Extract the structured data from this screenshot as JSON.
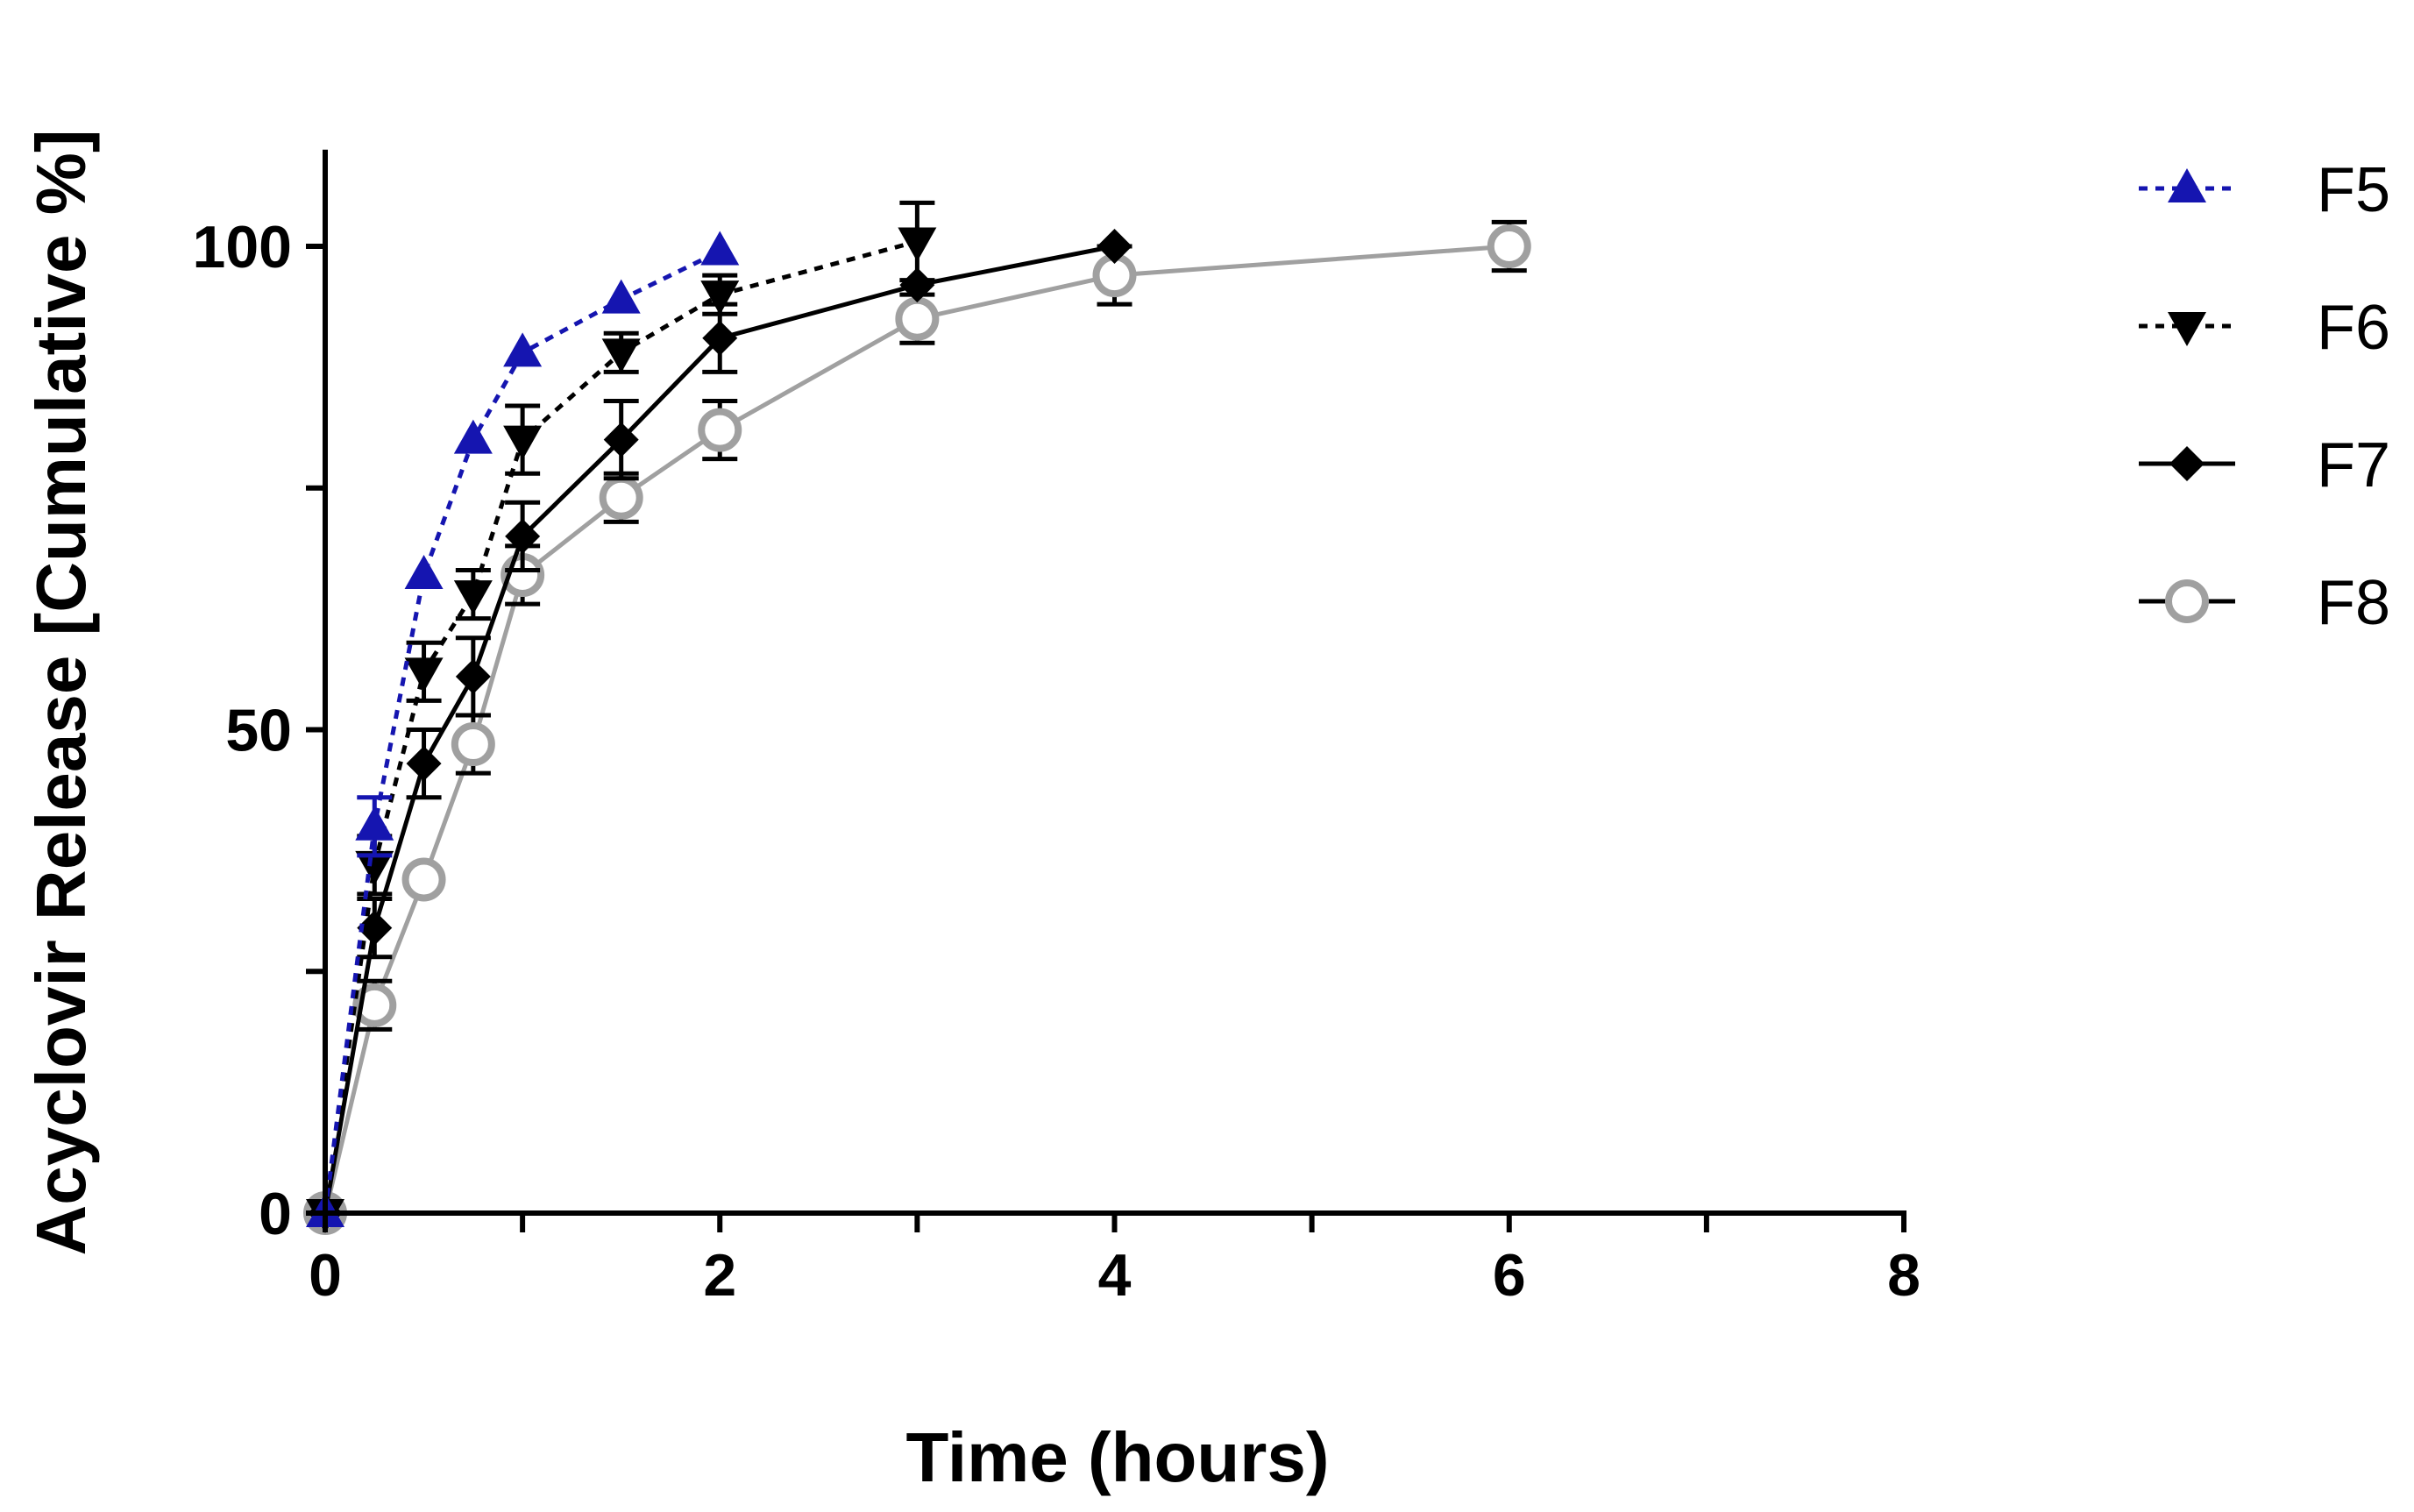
{
  "chart_data": {
    "type": "line",
    "title": "",
    "xlabel": "Time (hours)",
    "ylabel": "Acyclovir Release [Cumulative %]",
    "xlim": [
      0,
      8
    ],
    "ylim": [
      0,
      110
    ],
    "xticks": [
      0,
      2,
      4,
      6,
      8
    ],
    "xticks_minor": [
      1,
      3,
      5,
      7
    ],
    "yticks": [
      0,
      50,
      100
    ],
    "yticks_minor": [
      25,
      75
    ],
    "x_tick_labels": [
      "0",
      "2",
      "4",
      "6",
      "8"
    ],
    "y_tick_labels": [
      "0",
      "50",
      "100"
    ],
    "grid": false,
    "legend_position": "top-right, outside plot",
    "series": [
      {
        "name": "F5",
        "marker": "triangle-up",
        "line_style": "dashed",
        "color": "#1515b0",
        "x": [
          0,
          0.25,
          0.5,
          0.75,
          1,
          1.5,
          2
        ],
        "y": [
          0,
          40,
          66,
          80,
          89,
          94.5,
          99.5
        ],
        "err": [
          0,
          3,
          0,
          0,
          0,
          0,
          0
        ]
      },
      {
        "name": "F6",
        "marker": "triangle-down",
        "line_style": "dashed",
        "color": "#000000",
        "x": [
          0,
          0.25,
          0.5,
          0.75,
          1,
          1.5,
          2,
          3
        ],
        "y": [
          0,
          36,
          56,
          64,
          80,
          89,
          95,
          100.5
        ],
        "err": [
          0,
          3,
          3,
          2.5,
          3.5,
          2,
          2,
          4
        ]
      },
      {
        "name": "F7",
        "marker": "diamond",
        "line_style": "solid",
        "color": "#000000",
        "x": [
          0,
          0.25,
          0.5,
          0.75,
          1,
          1.5,
          2,
          3,
          4
        ],
        "y": [
          0,
          29.5,
          46.5,
          55.5,
          70,
          80,
          90.5,
          96,
          100
        ],
        "err": [
          0,
          3,
          3.5,
          4,
          3.5,
          4,
          3.5,
          0,
          0
        ]
      },
      {
        "name": "F8",
        "marker": "circle-open",
        "line_style": "solid",
        "color": "#a0a0a0",
        "x": [
          0,
          0.25,
          0.5,
          0.75,
          1,
          1.5,
          2,
          3,
          4,
          6
        ],
        "y": [
          0,
          21.5,
          34.5,
          48.5,
          66,
          74,
          81,
          92.5,
          97,
          100
        ],
        "err": [
          0,
          2.5,
          0,
          3,
          3,
          2.5,
          3,
          2.5,
          3,
          2.5
        ]
      }
    ]
  }
}
